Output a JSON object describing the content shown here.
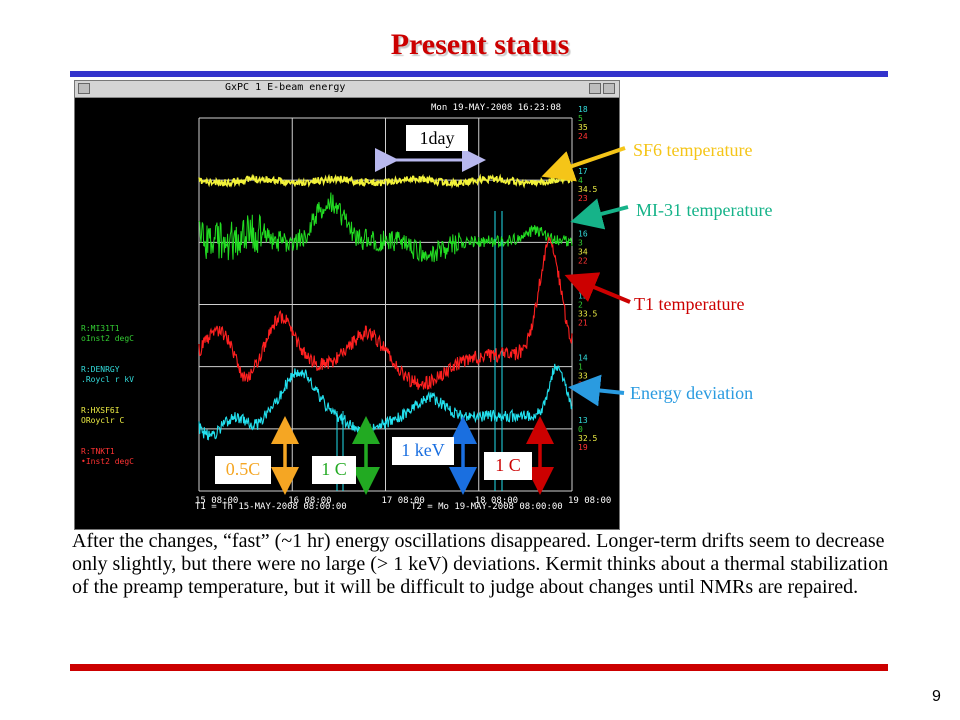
{
  "slide": {
    "title": "Present status",
    "page_number": "9",
    "paragraph": "After the changes, “fast” (~1 hr) energy oscillations disappeared. Longer-term drifts seem to decrease only slightly, but there were no large (> 1 keV) deviations. Kermit thinks about a thermal stabilization of the preamp temperature, but it will be difficult to judge about changes until NMRs are repaired."
  },
  "plot_window": {
    "title": "GxPC 1 E-beam energy",
    "timestamp": "Mon 19-MAY-2008 16:23:08",
    "x_ticks": [
      "15 08:00",
      "16 08:00",
      "17 08:00",
      "18 08:00",
      "19 08:00"
    ],
    "t1": "T1 = Th 15-MAY-2008 08:00:00",
    "t2": "T2 = Mo 19-MAY-2008 08:00:00",
    "legend": [
      {
        "line1": "R:MI31T1",
        "line2": "oInst2  degC",
        "color": "#33cc33"
      },
      {
        "line1": "R:DENRGY",
        "line2": ".Roycl r kV",
        "color": "#33dddd"
      },
      {
        "line1": "R:HXSF6I",
        "line2": "ORoyclr  C",
        "color": "#eeee44"
      },
      {
        "line1": "R:TNKT1",
        "line2": "•Inst2  degC",
        "color": "#ff3333"
      }
    ],
    "right_scales": [
      {
        "values": [
          "18",
          "5",
          "35",
          "24"
        ],
        "colors": [
          "#33dddd",
          "#33cc33",
          "#eeee44",
          "#ff3333"
        ]
      },
      {
        "values": [
          "17",
          "4",
          "34.5",
          "23"
        ],
        "colors": [
          "#33dddd",
          "#33cc33",
          "#eeee44",
          "#ff3333"
        ]
      },
      {
        "values": [
          "16",
          "3",
          "34",
          "22"
        ],
        "colors": [
          "#33dddd",
          "#33cc33",
          "#eeee44",
          "#ff3333"
        ]
      },
      {
        "values": [
          "15",
          "2",
          "33.5",
          "21"
        ],
        "colors": [
          "#33dddd",
          "#33cc33",
          "#eeee44",
          "#ff3333"
        ]
      },
      {
        "values": [
          "14",
          "1",
          "33",
          "20"
        ],
        "colors": [
          "#33dddd",
          "#33cc33",
          "#eeee44",
          "#ff3333"
        ]
      },
      {
        "values": [
          "13",
          "0",
          "32.5",
          "19"
        ],
        "colors": [
          "#33dddd",
          "#33cc33",
          "#eeee44",
          "#ff3333"
        ]
      }
    ],
    "series_colors": {
      "sf6": "#f2f23a",
      "mi31": "#22dd22",
      "t1": "#ff2020",
      "energy": "#22e0ee"
    }
  },
  "annotations": {
    "span_label": "1day",
    "sf6": {
      "text": "SF6 temperature",
      "color": "#f5c518"
    },
    "mi31": {
      "text": "MI-31 temperature",
      "color": "#16b389"
    },
    "t1": {
      "text": "T1 temperature",
      "color": "#cc0000"
    },
    "energy": {
      "text": "Energy deviation",
      "color": "#2a9be0"
    },
    "scale_bars": [
      {
        "text": "0.5C",
        "color": "#f5a623"
      },
      {
        "text": "1 C",
        "color": "#22aa22"
      },
      {
        "text": "1 keV",
        "color": "#1a6fe0"
      },
      {
        "text": "1 C",
        "color": "#cc0000"
      }
    ]
  }
}
